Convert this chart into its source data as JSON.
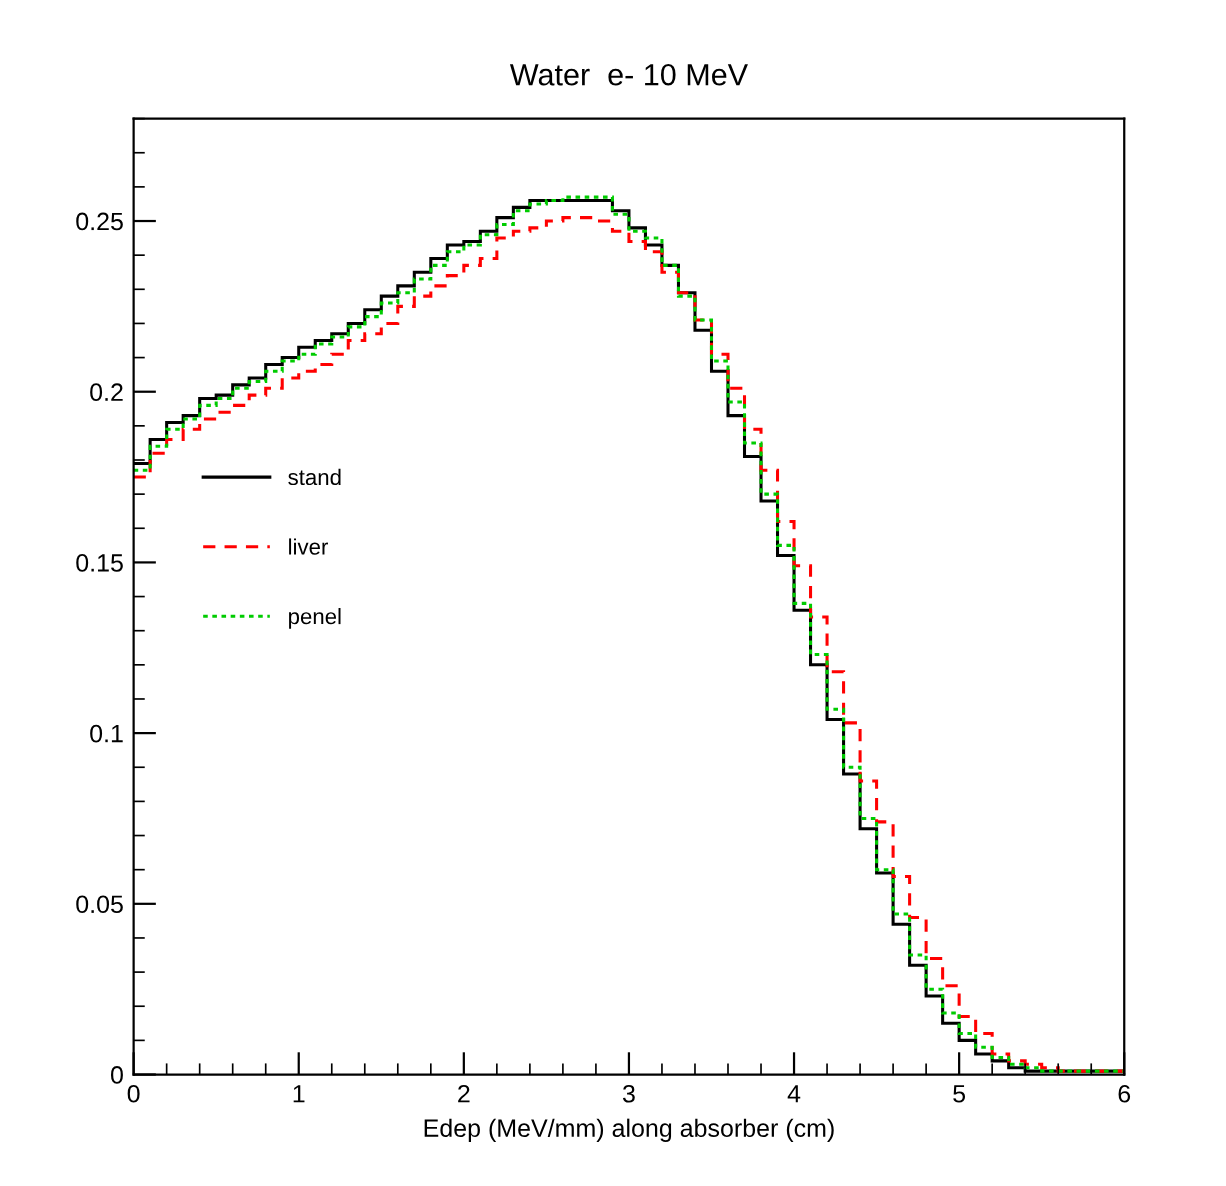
{
  "chart_data": {
    "type": "histogram",
    "title": "Water  e- 10 MeV",
    "xlabel": "Edep (MeV/mm) along absorber (cm)",
    "bins": [
      0,
      0.1,
      0.2,
      0.3,
      0.4,
      0.5,
      0.6,
      0.7,
      0.8,
      0.9,
      1,
      1.1,
      1.2,
      1.3,
      1.4,
      1.5,
      1.6,
      1.7,
      1.8,
      1.9,
      2,
      2.1,
      2.2,
      2.3,
      2.4,
      2.5,
      2.6,
      2.7,
      2.8,
      2.9,
      3,
      3.1,
      3.2,
      3.3,
      3.4,
      3.5,
      3.6,
      3.7,
      3.8,
      3.9,
      4,
      4.1,
      4.2,
      4.3,
      4.4,
      4.5,
      4.6,
      4.7,
      4.8,
      4.9,
      5,
      5.1,
      5.2,
      5.3,
      5.4,
      5.5,
      5.6,
      5.7,
      5.8,
      5.9,
      6
    ],
    "series": [
      {
        "name": "stand",
        "color": "#000000",
        "line_style": "solid",
        "values": [
          0.179,
          0.186,
          0.191,
          0.193,
          0.198,
          0.199,
          0.202,
          0.204,
          0.208,
          0.21,
          0.213,
          0.215,
          0.217,
          0.22,
          0.224,
          0.228,
          0.231,
          0.235,
          0.239,
          0.243,
          0.244,
          0.247,
          0.251,
          0.254,
          0.256,
          0.256,
          0.256,
          0.256,
          0.256,
          0.253,
          0.248,
          0.243,
          0.237,
          0.229,
          0.218,
          0.206,
          0.193,
          0.181,
          0.168,
          0.152,
          0.136,
          0.12,
          0.104,
          0.088,
          0.072,
          0.059,
          0.044,
          0.032,
          0.023,
          0.015,
          0.01,
          0.006,
          0.004,
          0.002,
          0.001,
          0.001,
          0.001,
          0.001,
          0.001,
          0.001
        ]
      },
      {
        "name": "liver",
        "color": "#ff0000",
        "line_style": "dashed",
        "values": [
          0.175,
          0.182,
          0.186,
          0.189,
          0.192,
          0.194,
          0.196,
          0.199,
          0.201,
          0.204,
          0.206,
          0.208,
          0.211,
          0.215,
          0.217,
          0.22,
          0.225,
          0.228,
          0.231,
          0.234,
          0.237,
          0.239,
          0.245,
          0.247,
          0.248,
          0.25,
          0.251,
          0.251,
          0.25,
          0.247,
          0.244,
          0.241,
          0.235,
          0.229,
          0.221,
          0.211,
          0.201,
          0.189,
          0.177,
          0.162,
          0.149,
          0.134,
          0.118,
          0.103,
          0.086,
          0.074,
          0.058,
          0.046,
          0.034,
          0.026,
          0.017,
          0.012,
          0.006,
          0.004,
          0.003,
          0.002,
          0.001,
          0.001,
          0.001,
          0.001
        ]
      },
      {
        "name": "penel",
        "color": "#00cc00",
        "line_style": "dotted",
        "values": [
          0.177,
          0.184,
          0.189,
          0.192,
          0.196,
          0.198,
          0.201,
          0.203,
          0.206,
          0.209,
          0.211,
          0.214,
          0.216,
          0.219,
          0.222,
          0.226,
          0.229,
          0.233,
          0.237,
          0.241,
          0.243,
          0.246,
          0.249,
          0.253,
          0.255,
          0.256,
          0.257,
          0.257,
          0.257,
          0.252,
          0.247,
          0.245,
          0.237,
          0.228,
          0.221,
          0.209,
          0.197,
          0.185,
          0.17,
          0.155,
          0.138,
          0.123,
          0.107,
          0.09,
          0.075,
          0.06,
          0.047,
          0.035,
          0.025,
          0.018,
          0.012,
          0.008,
          0.005,
          0.003,
          0.002,
          0.001,
          0.001,
          0.001,
          0.001,
          0.001
        ]
      }
    ],
    "xlim": [
      0,
      6
    ],
    "xticks": [
      0,
      1,
      2,
      3,
      4,
      5,
      6
    ],
    "ylim": [
      0,
      0.28
    ],
    "yticks": [
      0,
      0.05,
      0.1,
      0.15,
      0.2,
      0.25
    ],
    "legend": "left",
    "grid": false
  }
}
